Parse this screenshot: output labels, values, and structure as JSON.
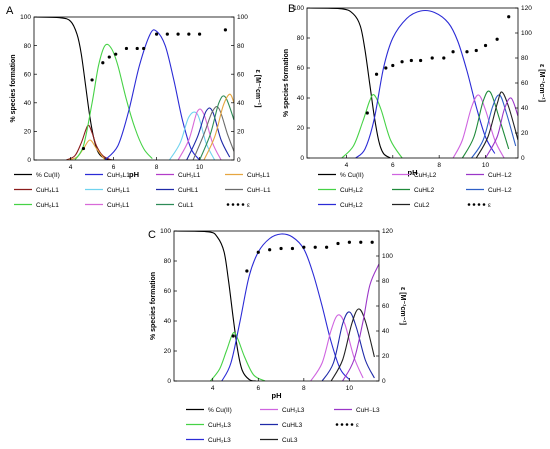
{
  "panels": [
    {
      "letter": "A",
      "ylabel": "% species formation",
      "y2label": "ε [M⁻¹cm⁻¹]",
      "xlabel": "pH",
      "xticks": [
        4,
        6,
        8,
        10
      ],
      "yticks": [
        0,
        20,
        40,
        60,
        80,
        100
      ],
      "y2ticks": [
        0,
        20,
        40,
        60,
        80,
        100
      ],
      "legend": [
        {
          "label": "% Cu(II)",
          "color": "#000000",
          "dotted": false
        },
        {
          "label": "CuH₃L1",
          "color": "#2b2bd6",
          "dotted": false
        },
        {
          "label": "CuH₁L1",
          "color": "#b23dc9",
          "dotted": false
        },
        {
          "label": "CuH₅L1",
          "color": "#e6a640",
          "dotted": false
        },
        {
          "label": "CuH₄L1",
          "color": "#8b1c1c",
          "dotted": false
        },
        {
          "label": "CuH₂L1",
          "color": "#6fd3ef",
          "dotted": false
        },
        {
          "label": "CuHL1",
          "color": "#1f2aa8",
          "dotted": false
        },
        {
          "label": "CuH₋L1",
          "color": "#6b6b6b",
          "dotted": false
        },
        {
          "label": "CuH₆L1",
          "color": "#46d246",
          "dotted": false
        },
        {
          "label": "CuH₁L1",
          "color": "#d86ad8",
          "dotted": false
        },
        {
          "label": "CuL1",
          "color": "#2e8b57",
          "dotted": false
        },
        {
          "label": "ε",
          "color": "#000000",
          "dotted": true
        }
      ]
    },
    {
      "letter": "B",
      "ylabel": "% species formation",
      "y2label": "ε [M⁻¹cm⁻¹]",
      "xlabel": "pH",
      "xticks": [
        4,
        6,
        8,
        10
      ],
      "yticks": [
        0,
        20,
        40,
        60,
        80,
        100
      ],
      "y2ticks": [
        0,
        20,
        40,
        60,
        80,
        100,
        120
      ],
      "legend": [
        {
          "label": "% Cu(II)",
          "color": "#000000",
          "dotted": false
        },
        {
          "label": "CuH₁L2",
          "color": "#cf64e0",
          "dotted": false
        },
        {
          "label": "CuH₋L2",
          "color": "#9b36c8",
          "dotted": false
        },
        {
          "label": "CuH₃L2",
          "color": "#46d246",
          "dotted": false
        },
        {
          "label": "CuHL2",
          "color": "#1f8a3a",
          "dotted": false
        },
        {
          "label": "CuH₋L2",
          "color": "#2e5fc7",
          "dotted": false
        },
        {
          "label": "CuH₂L2",
          "color": "#2b2bd6",
          "dotted": false
        },
        {
          "label": "CuL2",
          "color": "#222222",
          "dotted": false
        },
        {
          "label": "ε",
          "color": "#000000",
          "dotted": true
        }
      ]
    },
    {
      "letter": "C",
      "ylabel": "% species formation",
      "y2label": "ε [M⁻¹cm⁻¹]",
      "xlabel": "pH",
      "xticks": [
        4,
        6,
        8,
        10
      ],
      "yticks": [
        0,
        20,
        40,
        60,
        80,
        100
      ],
      "y2ticks": [
        0,
        20,
        40,
        60,
        80,
        100,
        120
      ],
      "legend": [
        {
          "label": "% Cu(II)",
          "color": "#000000",
          "dotted": false
        },
        {
          "label": "CuH₁L3",
          "color": "#cf64e0",
          "dotted": false
        },
        {
          "label": "CuH₋L3",
          "color": "#9b36c8",
          "dotted": false
        },
        {
          "label": "CuH₃L3",
          "color": "#46d246",
          "dotted": false
        },
        {
          "label": "CuHL3",
          "color": "#1f2aa8",
          "dotted": false
        },
        {
          "label": "ε",
          "color": "#000000",
          "dotted": true
        },
        {
          "label": "CuH₂L3",
          "color": "#2b2bd6",
          "dotted": false
        },
        {
          "label": "CuL3",
          "color": "#222222",
          "dotted": false
        }
      ]
    }
  ],
  "chart_data": [
    {
      "type": "line",
      "panel": "A",
      "xlabel": "pH",
      "ylabel": "% species formation",
      "y2label": "ε [M⁻¹cm⁻¹]",
      "xlim": [
        2.3,
        11.6
      ],
      "ylim": [
        0,
        100
      ],
      "y2lim": [
        0,
        100
      ],
      "series": [
        {
          "name": "% Cu(II)",
          "color": "#000000",
          "x": [
            2.3,
            3.5,
            4.0,
            4.3,
            4.5,
            4.7,
            4.9,
            5.1,
            5.3,
            5.6,
            6.0
          ],
          "values": [
            100,
            99.5,
            97,
            88,
            74,
            52,
            30,
            14,
            5,
            1,
            0
          ]
        },
        {
          "name": "CuH₄L1",
          "color": "#8b1c1c",
          "x": [
            3.8,
            4.2,
            4.5,
            4.8,
            5.0,
            5.2,
            5.5,
            5.9
          ],
          "values": [
            0,
            3,
            12,
            24,
            19,
            10,
            3,
            0
          ]
        },
        {
          "name": "CuH₅L1",
          "color": "#e6a640",
          "x": [
            3.9,
            4.3,
            4.6,
            4.9,
            5.2,
            5.6
          ],
          "values": [
            0,
            2,
            8,
            14,
            8,
            0
          ]
        },
        {
          "name": "CuH₆L1",
          "color": "#46d246",
          "x": [
            4.2,
            4.6,
            5.0,
            5.3,
            5.6,
            5.9,
            6.2,
            6.6,
            7.0,
            7.4,
            7.8
          ],
          "values": [
            0,
            10,
            40,
            66,
            80,
            78,
            66,
            42,
            22,
            8,
            1
          ]
        },
        {
          "name": "CuH₃L1",
          "color": "#2b2bd6",
          "x": [
            5.6,
            6.2,
            6.7,
            7.2,
            7.7,
            8.0,
            8.4,
            8.8,
            9.2,
            9.6,
            10.0
          ],
          "values": [
            0,
            10,
            34,
            66,
            88,
            90,
            80,
            56,
            28,
            8,
            0
          ]
        },
        {
          "name": "CuH₂L1",
          "color": "#6fd3ef",
          "x": [
            8.6,
            9.1,
            9.5,
            9.9,
            10.3,
            10.7
          ],
          "values": [
            0,
            12,
            30,
            32,
            12,
            0
          ]
        },
        {
          "name": "CuH₁L1",
          "color": "#d86ad8",
          "x": [
            9.0,
            9.5,
            9.9,
            10.2,
            10.6,
            11.0
          ],
          "values": [
            0,
            14,
            34,
            32,
            12,
            0
          ]
        },
        {
          "name": "CuHL1",
          "color": "#1f2aa8",
          "x": [
            9.4,
            9.9,
            10.3,
            10.6,
            11.0,
            11.4
          ],
          "values": [
            0,
            16,
            34,
            34,
            14,
            2
          ]
        },
        {
          "name": "CuH₋L1",
          "color": "#6b6b6b",
          "x": [
            9.7,
            10.2,
            10.6,
            10.9,
            11.3,
            11.6
          ],
          "values": [
            0,
            18,
            34,
            36,
            18,
            6
          ]
        },
        {
          "name": "CuL1",
          "color": "#2e8b57",
          "x": [
            10.0,
            10.5,
            10.9,
            11.2,
            11.6
          ],
          "values": [
            0,
            18,
            40,
            44,
            28
          ]
        },
        {
          "name": "CuH₅L1",
          "color": "#e6a640",
          "x": [
            10.2,
            10.7,
            11.1,
            11.4,
            11.6
          ],
          "values": [
            0,
            16,
            38,
            46,
            40
          ]
        }
      ],
      "epsilon": {
        "name": "ε",
        "x": [
          4.6,
          5.0,
          5.5,
          5.8,
          6.1,
          6.6,
          7.1,
          7.4,
          8.0,
          8.5,
          9.0,
          9.5,
          10.0,
          11.2
        ],
        "values": [
          8,
          56,
          68,
          72,
          74,
          78,
          78,
          78,
          88,
          88,
          88,
          88,
          88,
          91
        ]
      }
    },
    {
      "type": "line",
      "panel": "B",
      "xlabel": "pH",
      "ylabel": "% species formation",
      "y2label": "ε [M⁻¹cm⁻¹]",
      "xlim": [
        2.3,
        11.4
      ],
      "ylim": [
        0,
        100
      ],
      "y2lim": [
        0,
        120
      ],
      "series": [
        {
          "name": "% Cu(II)",
          "color": "#000000",
          "x": [
            2.3,
            3.8,
            4.3,
            4.6,
            4.8,
            5.0,
            5.2,
            5.4,
            5.6,
            5.9
          ],
          "values": [
            100,
            99.5,
            96,
            88,
            72,
            50,
            28,
            11,
            3,
            0
          ]
        },
        {
          "name": "CuH₃L2",
          "color": "#46d246",
          "x": [
            3.8,
            4.3,
            4.7,
            5.0,
            5.2,
            5.5,
            5.9,
            6.4
          ],
          "values": [
            0,
            8,
            24,
            38,
            42,
            32,
            12,
            0
          ]
        },
        {
          "name": "CuH₂L2",
          "color": "#2b2bd6",
          "x": [
            4.4,
            4.8,
            5.2,
            5.6,
            6.0,
            6.6,
            7.2,
            7.8,
            8.4,
            8.8,
            9.2,
            9.6,
            10.0,
            10.4
          ],
          "values": [
            0,
            6,
            26,
            60,
            80,
            93,
            98,
            97,
            90,
            78,
            58,
            34,
            14,
            3
          ]
        },
        {
          "name": "CuH₁L2",
          "color": "#cf64e0",
          "x": [
            8.6,
            9.0,
            9.4,
            9.7,
            10.0,
            10.4,
            10.8
          ],
          "values": [
            0,
            12,
            34,
            42,
            32,
            12,
            0
          ]
        },
        {
          "name": "CuHL2",
          "color": "#1f8a3a",
          "x": [
            9.0,
            9.5,
            9.9,
            10.2,
            10.6,
            11.0
          ],
          "values": [
            0,
            14,
            38,
            44,
            26,
            6
          ]
        },
        {
          "name": "CuH₋L2",
          "color": "#2e5fc7",
          "x": [
            9.4,
            9.9,
            10.3,
            10.6,
            10.9,
            11.3
          ],
          "values": [
            0,
            12,
            34,
            42,
            30,
            8
          ]
        },
        {
          "name": "CuL2",
          "color": "#222222",
          "x": [
            9.6,
            10.1,
            10.5,
            10.7,
            11.0,
            11.4
          ],
          "values": [
            0,
            14,
            36,
            44,
            34,
            12
          ]
        },
        {
          "name": "CuH₋L2",
          "color": "#9b36c8",
          "x": [
            10.0,
            10.5,
            10.8,
            11.1,
            11.4
          ],
          "values": [
            0,
            14,
            32,
            40,
            28
          ]
        }
      ],
      "epsilon": {
        "name": "ε",
        "x": [
          4.9,
          5.3,
          5.7,
          6.0,
          6.4,
          6.8,
          7.2,
          7.7,
          8.2,
          8.6,
          9.2,
          9.6,
          10.0,
          10.5,
          11.0
        ],
        "values": [
          36,
          67,
          72,
          74,
          77,
          78,
          78,
          80,
          80,
          85,
          85,
          86,
          90,
          95,
          113
        ]
      }
    },
    {
      "type": "line",
      "panel": "C",
      "xlabel": "pH",
      "ylabel": "% species formation",
      "y2label": "ε [M⁻¹cm⁻¹]",
      "xlim": [
        2.3,
        11.3
      ],
      "ylim": [
        0,
        100
      ],
      "y2lim": [
        0,
        120
      ],
      "series": [
        {
          "name": "% Cu(II)",
          "color": "#000000",
          "x": [
            2.3,
            3.8,
            4.2,
            4.5,
            4.7,
            4.9,
            5.1,
            5.3,
            5.6,
            5.9
          ],
          "values": [
            100,
            99.5,
            96,
            86,
            66,
            42,
            20,
            7,
            1,
            0
          ]
        },
        {
          "name": "CuH₃L3",
          "color": "#46d246",
          "x": [
            3.9,
            4.3,
            4.6,
            4.9,
            5.1,
            5.4,
            5.8,
            6.3
          ],
          "values": [
            0,
            8,
            20,
            32,
            28,
            16,
            4,
            0
          ]
        },
        {
          "name": "CuH₂L3",
          "color": "#2b2bd6",
          "x": [
            4.4,
            4.8,
            5.2,
            5.6,
            6.0,
            6.5,
            7.0,
            7.5,
            8.0,
            8.4,
            8.8,
            9.2,
            9.6,
            10.0
          ],
          "values": [
            0,
            12,
            40,
            70,
            86,
            95,
            98,
            96,
            88,
            72,
            50,
            26,
            8,
            1
          ]
        },
        {
          "name": "CuH₁L3",
          "color": "#cf64e0",
          "x": [
            8.3,
            8.8,
            9.2,
            9.5,
            9.8,
            10.2,
            10.6
          ],
          "values": [
            0,
            12,
            34,
            44,
            38,
            16,
            2
          ]
        },
        {
          "name": "CuHL3",
          "color": "#1f2aa8",
          "x": [
            8.8,
            9.3,
            9.7,
            10.0,
            10.3,
            10.7,
            11.1
          ],
          "values": [
            0,
            12,
            38,
            46,
            36,
            14,
            2
          ]
        },
        {
          "name": "CuL3",
          "color": "#222222",
          "x": [
            9.2,
            9.7,
            10.1,
            10.4,
            10.7,
            11.1
          ],
          "values": [
            0,
            14,
            38,
            48,
            40,
            16
          ]
        },
        {
          "name": "CuH₋L3",
          "color": "#9b36c8",
          "x": [
            9.7,
            10.2,
            10.6,
            10.9,
            11.3
          ],
          "values": [
            0,
            14,
            40,
            64,
            78
          ]
        }
      ],
      "epsilon": {
        "name": "ε",
        "x": [
          4.9,
          5.5,
          6.0,
          6.5,
          7.0,
          7.5,
          8.0,
          8.5,
          9.0,
          9.5,
          10.0,
          10.5,
          11.0
        ],
        "values": [
          36,
          88,
          103,
          105,
          106,
          106,
          107,
          107,
          107,
          110,
          111,
          111,
          111
        ]
      }
    }
  ]
}
